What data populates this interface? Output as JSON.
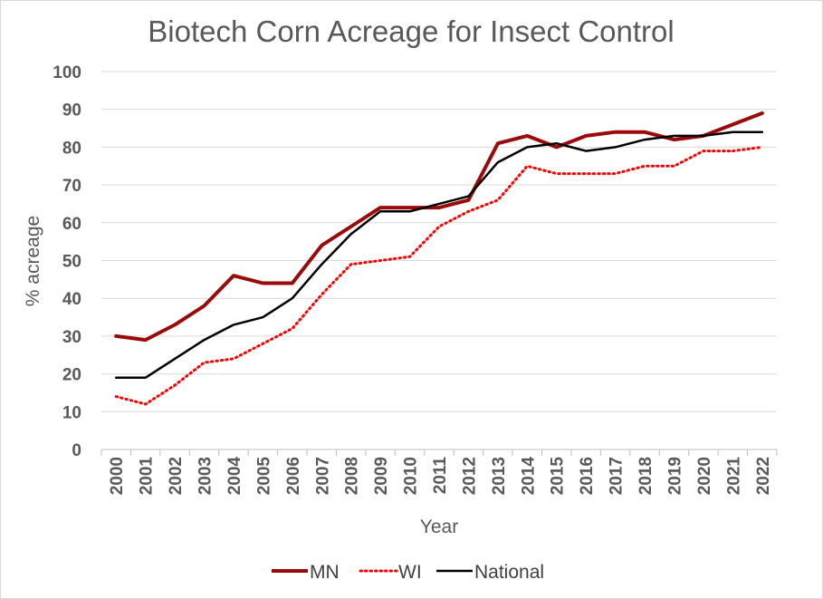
{
  "chart_data": {
    "type": "line",
    "title": "Biotech Corn Acreage for Insect Control",
    "xlabel": "Year",
    "ylabel": "% acreage",
    "ylim": [
      0,
      100
    ],
    "yticks": [
      0,
      10,
      20,
      30,
      40,
      50,
      60,
      70,
      80,
      90,
      100
    ],
    "grid": true,
    "legend_position": "bottom",
    "categories": [
      "2000",
      "2001",
      "2002",
      "2003",
      "2004",
      "2005",
      "2006",
      "2007",
      "2008",
      "2009",
      "2010",
      "2011",
      "2012",
      "2013",
      "2014",
      "2015",
      "2016",
      "2017",
      "2018",
      "2019",
      "2020",
      "2021",
      "2022"
    ],
    "series": [
      {
        "name": "MN",
        "color": "#9b0a0a",
        "style": "solid",
        "values": [
          30,
          29,
          33,
          38,
          46,
          44,
          44,
          54,
          59,
          64,
          64,
          64,
          66,
          81,
          83,
          80,
          83,
          84,
          84,
          82,
          83,
          86,
          89
        ]
      },
      {
        "name": "WI",
        "color": "#ff0000",
        "style": "dotted",
        "values": [
          14,
          12,
          17,
          23,
          24,
          28,
          32,
          41,
          49,
          50,
          51,
          59,
          63,
          66,
          75,
          73,
          73,
          73,
          75,
          75,
          79,
          79,
          80
        ]
      },
      {
        "name": "National",
        "color": "#000000",
        "style": "solid",
        "values": [
          19,
          19,
          24,
          29,
          33,
          35,
          40,
          49,
          57,
          63,
          63,
          65,
          67,
          76,
          80,
          81,
          79,
          80,
          82,
          83,
          83,
          84,
          84
        ]
      }
    ]
  }
}
